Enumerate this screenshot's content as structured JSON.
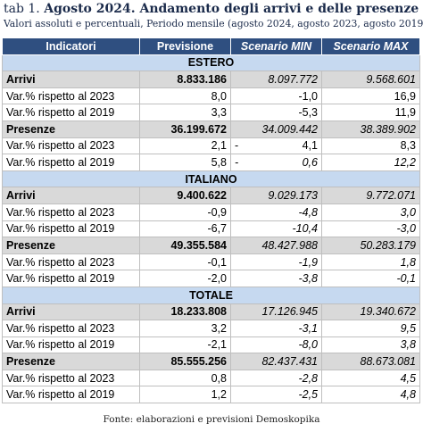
{
  "header": {
    "title_prefix": "tab 1.",
    "title": "Agosto 2024. Andamento degli arrivi e delle presenze",
    "subtitle": "Valori assoluti e percentuali, Periodo mensile (agosto 2024, agosto 2023, agosto 2019)"
  },
  "table": {
    "columns": [
      "Indicatori",
      "Previsione",
      "Scenario MIN",
      "Scenario MAX"
    ],
    "sections": [
      {
        "name": "ESTERO",
        "rows": [
          [
            "Arrivi",
            "8.833.186",
            "8.097.772",
            "9.568.601"
          ],
          [
            "Var.% rispetto al 2023",
            "8,0",
            "-1,0",
            "16,9"
          ],
          [
            "Var.% rispetto al 2019",
            "3,3",
            "-5,3",
            "11,9"
          ],
          [
            "Presenze",
            "36.199.672",
            "34.009.442",
            "38.389.902"
          ],
          [
            "Var.% rispetto al 2023",
            "2,1",
            [
              "-",
              "4,1"
            ],
            "8,3"
          ],
          [
            "Var.% rispetto al 2019",
            "5,8",
            [
              "-",
              "0,6"
            ],
            "12,2"
          ]
        ]
      },
      {
        "name": "ITALIANO",
        "rows": [
          [
            "Arrivi",
            "9.400.622",
            "9.029.173",
            "9.772.071"
          ],
          [
            "Var.% rispetto al 2023",
            "-0,9",
            "-4,8",
            "3,0"
          ],
          [
            "Var.% rispetto al 2019",
            "-6,7",
            "-10,4",
            "-3,0"
          ],
          [
            "Presenze",
            "49.355.584",
            "48.427.988",
            "50.283.179"
          ],
          [
            "Var.% rispetto al 2023",
            "-0,1",
            "-1,9",
            "1,8"
          ],
          [
            "Var.% rispetto al 2019",
            "-2,0",
            "-3,8",
            "-0,1"
          ]
        ]
      },
      {
        "name": "TOTALE",
        "rows": [
          [
            "Arrivi",
            "18.233.808",
            "17.126.945",
            "19.340.672"
          ],
          [
            "Var.% rispetto al 2023",
            "3,2",
            "-3,1",
            "9,5"
          ],
          [
            "Var.% rispetto al 2019",
            "-2,1",
            "-8,0",
            "3,8"
          ],
          [
            "Presenze",
            "85.555.256",
            "82.437.431",
            "88.673.081"
          ],
          [
            "Var.% rispetto al 2023",
            "0,8",
            "-2,8",
            "4,5"
          ],
          [
            "Var.% rispetto al 2019",
            "1,2",
            "-2,5",
            "4,8"
          ]
        ]
      }
    ]
  },
  "footer": "Fonte: elaborazioni e previsioni Demoskopika"
}
